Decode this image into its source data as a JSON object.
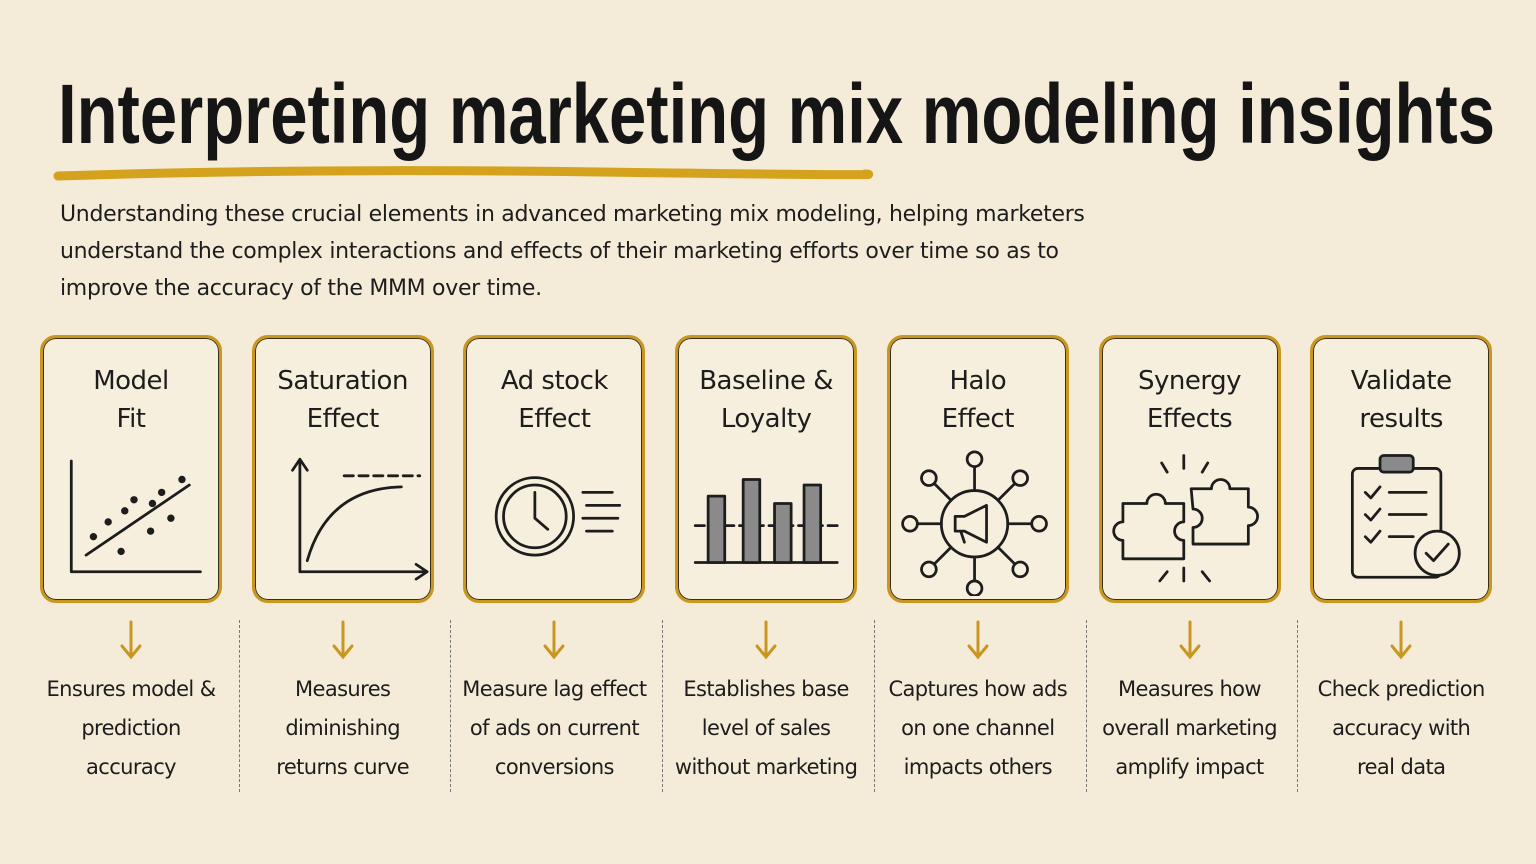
{
  "header": {
    "title": "Interpreting marketing mix modeling insights",
    "intro_lines": [
      "Understanding these crucial elements in advanced marketing mix modeling, helping marketers",
      "understand the complex interactions and effects of their marketing efforts over time so as to",
      "improve the accuracy of the MMM over time."
    ]
  },
  "cards": [
    {
      "title_lines": [
        "Model",
        "Fit"
      ],
      "description_lines": [
        "Ensures model &",
        "prediction",
        "accuracy"
      ]
    },
    {
      "title_lines": [
        "Saturation",
        "Effect"
      ],
      "description_lines": [
        "Measures",
        "diminishing",
        "returns curve"
      ]
    },
    {
      "title_lines": [
        "Ad stock",
        "Effect"
      ],
      "description_lines": [
        "Measure lag effect",
        "of ads on current",
        "conversions"
      ]
    },
    {
      "title_lines": [
        "Baseline &",
        "Loyalty"
      ],
      "description_lines": [
        "Establishes base",
        "level of sales",
        "without marketing"
      ]
    },
    {
      "title_lines": [
        "Halo",
        "Effect"
      ],
      "description_lines": [
        "Captures how ads",
        "on one channel",
        "impacts others"
      ]
    },
    {
      "title_lines": [
        "Synergy",
        "Effects"
      ],
      "description_lines": [
        "Measures how",
        "overall marketing",
        "amplify impact"
      ]
    },
    {
      "title_lines": [
        "Validate",
        "results"
      ],
      "description_lines": [
        "Check prediction",
        "accuracy with",
        "real data"
      ]
    }
  ]
}
